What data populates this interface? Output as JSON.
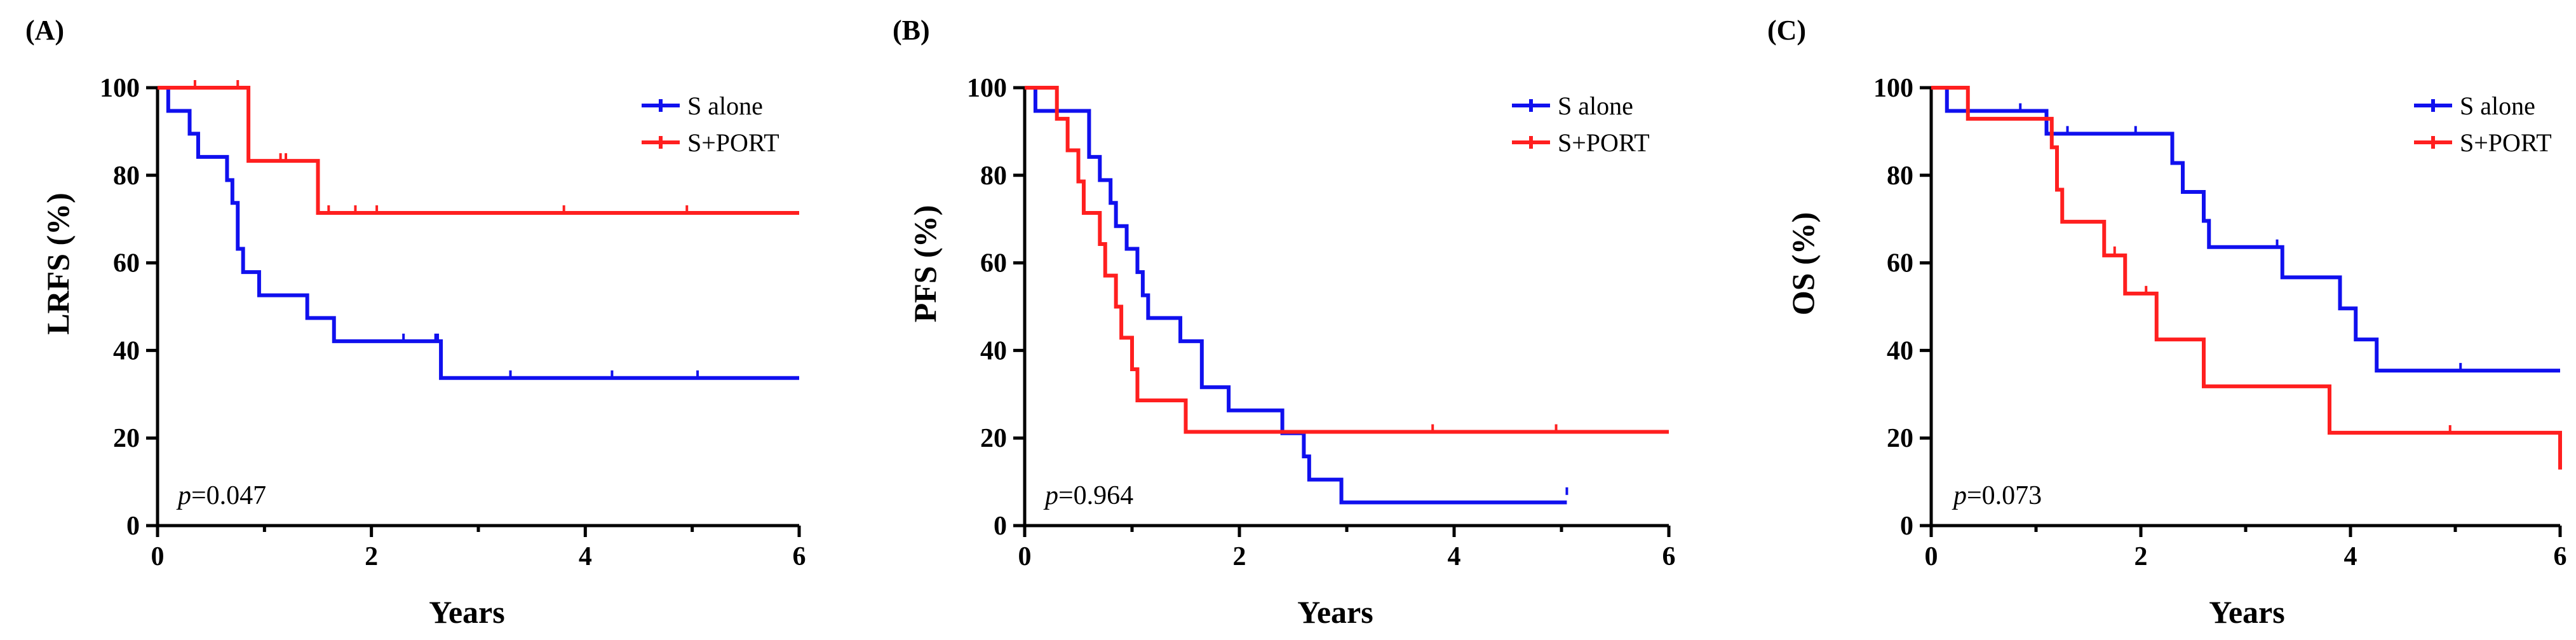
{
  "panels": [
    {
      "panel_label": "(A)",
      "ylabel": "LRFS (%)",
      "xlabel": "Years",
      "pvalue": "=0.047",
      "pvalue_prefix": "p"
    },
    {
      "panel_label": "(B)",
      "ylabel": "PFS (%)",
      "xlabel": "Years",
      "pvalue": "=0.964",
      "pvalue_prefix": "p"
    },
    {
      "panel_label": "(C)",
      "ylabel": "OS (%)",
      "xlabel": "Years",
      "pvalue": "=0.073",
      "pvalue_prefix": "p"
    }
  ],
  "legend": [
    "S alone",
    "S+PORT"
  ],
  "colors": {
    "s_alone": "#1010ee",
    "s_port": "#ff1f1f",
    "axis": "#000000"
  },
  "chart_data": [
    {
      "type": "line",
      "step": true,
      "title": "(A)",
      "xlabel": "Years",
      "ylabel": "LRFS (%)",
      "xlim": [
        0,
        6
      ],
      "ylim": [
        0,
        100
      ],
      "xticks": [
        0,
        2,
        4,
        6
      ],
      "yticks": [
        0,
        20,
        40,
        60,
        80,
        100
      ],
      "legend_position": "top-right",
      "annotation": "p=0.047",
      "series": [
        {
          "name": "S alone",
          "points": [
            [
              0,
              100
            ],
            [
              0.1,
              94.7
            ],
            [
              0.3,
              89.5
            ],
            [
              0.38,
              84.2
            ],
            [
              0.65,
              78.9
            ],
            [
              0.7,
              73.7
            ],
            [
              0.75,
              63.2
            ],
            [
              0.8,
              57.9
            ],
            [
              0.95,
              52.6
            ],
            [
              1.4,
              47.4
            ],
            [
              1.65,
              42.1
            ],
            [
              2.65,
              33.7
            ],
            [
              6,
              33.7
            ]
          ],
          "censored": [
            [
              2.3,
              42.1
            ],
            [
              2.6,
              42.1
            ],
            [
              2.62,
              42.1
            ],
            [
              3.3,
              33.7
            ],
            [
              4.25,
              33.7
            ],
            [
              5.05,
              33.7
            ]
          ]
        },
        {
          "name": "S+PORT",
          "points": [
            [
              0,
              100
            ],
            [
              0.85,
              83.3
            ],
            [
              1.5,
              71.4
            ],
            [
              6,
              71.4
            ]
          ],
          "censored": [
            [
              0.35,
              100
            ],
            [
              0.75,
              100
            ],
            [
              0.85,
              91
            ],
            [
              1.15,
              83.3
            ],
            [
              1.2,
              83.3
            ],
            [
              1.6,
              71.4
            ],
            [
              1.85,
              71.4
            ],
            [
              2.05,
              71.4
            ],
            [
              3.8,
              71.4
            ],
            [
              4.95,
              71.4
            ]
          ]
        }
      ]
    },
    {
      "type": "line",
      "step": true,
      "title": "(B)",
      "xlabel": "Years",
      "ylabel": "PFS (%)",
      "xlim": [
        0,
        6
      ],
      "ylim": [
        0,
        100
      ],
      "xticks": [
        0,
        2,
        4,
        6
      ],
      "yticks": [
        0,
        20,
        40,
        60,
        80,
        100
      ],
      "legend_position": "top-right",
      "annotation": "p=0.964",
      "series": [
        {
          "name": "S alone",
          "points": [
            [
              0,
              100
            ],
            [
              0.1,
              94.7
            ],
            [
              0.6,
              84.2
            ],
            [
              0.7,
              78.9
            ],
            [
              0.8,
              73.7
            ],
            [
              0.85,
              68.4
            ],
            [
              0.95,
              63.2
            ],
            [
              1.05,
              57.9
            ],
            [
              1.1,
              52.6
            ],
            [
              1.15,
              47.4
            ],
            [
              1.45,
              42.1
            ],
            [
              1.65,
              31.6
            ],
            [
              1.9,
              26.3
            ],
            [
              2.4,
              21.1
            ],
            [
              2.6,
              15.8
            ],
            [
              2.65,
              10.5
            ],
            [
              2.95,
              5.3
            ],
            [
              5.05,
              5.3
            ]
          ],
          "censored": [
            [
              5.05,
              7
            ]
          ]
        },
        {
          "name": "S+PORT",
          "points": [
            [
              0,
              100
            ],
            [
              0.3,
              92.9
            ],
            [
              0.4,
              85.7
            ],
            [
              0.5,
              78.6
            ],
            [
              0.55,
              71.4
            ],
            [
              0.7,
              64.3
            ],
            [
              0.75,
              57.1
            ],
            [
              0.85,
              50
            ],
            [
              0.9,
              42.9
            ],
            [
              1.0,
              35.7
            ],
            [
              1.05,
              28.6
            ],
            [
              1.5,
              21.4
            ],
            [
              6,
              21.4
            ]
          ],
          "censored": [
            [
              3.8,
              21.4
            ],
            [
              4.95,
              21.4
            ]
          ]
        }
      ]
    },
    {
      "type": "line",
      "step": true,
      "title": "(C)",
      "xlabel": "Years",
      "ylabel": "OS (%)",
      "xlim": [
        0,
        6
      ],
      "ylim": [
        0,
        100
      ],
      "xticks": [
        0,
        2,
        4,
        6
      ],
      "yticks": [
        0,
        20,
        40,
        60,
        80,
        100
      ],
      "legend_position": "top-right",
      "annotation": "p=0.073",
      "series": [
        {
          "name": "S alone",
          "points": [
            [
              0,
              100
            ],
            [
              0.15,
              94.7
            ],
            [
              1.1,
              89.5
            ],
            [
              2.3,
              82.8
            ],
            [
              2.4,
              76.2
            ],
            [
              2.6,
              69.6
            ],
            [
              2.65,
              63.6
            ],
            [
              3.35,
              56.7
            ],
            [
              3.9,
              49.6
            ],
            [
              4.05,
              42.5
            ],
            [
              4.25,
              35.4
            ],
            [
              6,
              35.4
            ]
          ],
          "censored": [
            [
              0.85,
              94.7
            ],
            [
              1.3,
              89.5
            ],
            [
              1.95,
              89.5
            ],
            [
              3.3,
              63.6
            ],
            [
              5.05,
              35.4
            ]
          ]
        },
        {
          "name": "S+PORT",
          "points": [
            [
              0,
              100
            ],
            [
              0.35,
              92.9
            ],
            [
              1.15,
              86.4
            ],
            [
              1.2,
              76.7
            ],
            [
              1.25,
              69.4
            ],
            [
              1.65,
              61.7
            ],
            [
              1.85,
              53
            ],
            [
              2.15,
              42.5
            ],
            [
              2.6,
              31.8
            ],
            [
              3.8,
              21.2
            ],
            [
              6,
              21.2
            ],
            [
              6,
              12.8
            ]
          ],
          "censored": [
            [
              1.75,
              62
            ],
            [
              2.05,
              53
            ],
            [
              4.95,
              21.2
            ]
          ]
        }
      ]
    }
  ]
}
